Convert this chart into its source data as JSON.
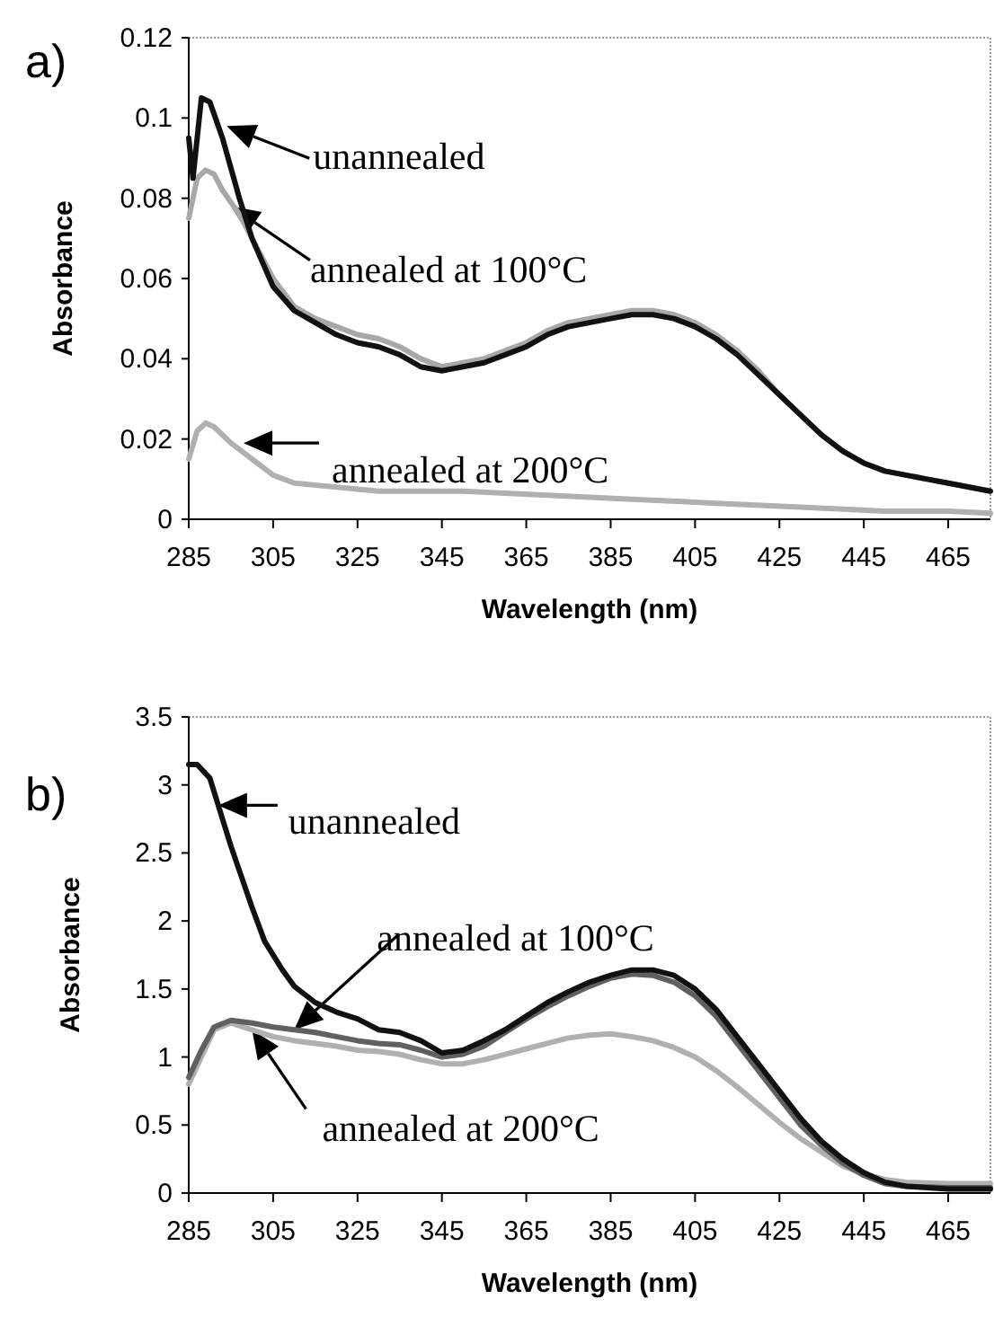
{
  "chart_data": [
    {
      "type": "line",
      "title": "a)",
      "xlabel": "Wavelength (nm)",
      "ylabel": "Absorbance",
      "xlim": [
        285,
        475
      ],
      "xticks": [
        285,
        305,
        325,
        345,
        365,
        385,
        405,
        425,
        445,
        465
      ],
      "ylim": [
        0,
        0.12
      ],
      "yticks": [
        0,
        0.02,
        0.04,
        0.06,
        0.08,
        0.1,
        0.12
      ],
      "grid": false,
      "marker": "none",
      "line_style": "solid",
      "series": [
        {
          "color": "#a8a8a8",
          "x": [
            285,
            287,
            289,
            291,
            293,
            297,
            300,
            305,
            310,
            315,
            320,
            325,
            330,
            335,
            340,
            345,
            350,
            355,
            360,
            365,
            370,
            375,
            380,
            385,
            390,
            395,
            400,
            405,
            410,
            415,
            420,
            425,
            430,
            435,
            440,
            445,
            450,
            455,
            460,
            465,
            470,
            475
          ],
          "values": [
            0.075,
            0.085,
            0.087,
            0.086,
            0.082,
            0.076,
            0.07,
            0.06,
            0.053,
            0.05,
            0.048,
            0.046,
            0.045,
            0.043,
            0.04,
            0.038,
            0.039,
            0.04,
            0.042,
            0.044,
            0.047,
            0.049,
            0.05,
            0.051,
            0.052,
            0.052,
            0.051,
            0.049,
            0.046,
            0.042,
            0.037,
            0.031,
            0.026,
            0.021,
            0.017,
            0.014,
            0.012,
            0.011,
            0.01,
            0.009,
            0.008,
            0.007
          ]
        },
        {
          "color": "#111111",
          "x": [
            285,
            286,
            288,
            290,
            293,
            297,
            300,
            305,
            310,
            315,
            320,
            325,
            330,
            335,
            340,
            345,
            350,
            355,
            360,
            365,
            370,
            375,
            380,
            385,
            390,
            395,
            400,
            405,
            410,
            415,
            420,
            425,
            430,
            435,
            440,
            445,
            450,
            455,
            460,
            465,
            470,
            475
          ],
          "values": [
            0.095,
            0.085,
            0.105,
            0.104,
            0.095,
            0.08,
            0.07,
            0.058,
            0.052,
            0.049,
            0.046,
            0.044,
            0.043,
            0.041,
            0.038,
            0.037,
            0.038,
            0.039,
            0.041,
            0.043,
            0.046,
            0.048,
            0.049,
            0.05,
            0.051,
            0.051,
            0.05,
            0.048,
            0.045,
            0.041,
            0.036,
            0.031,
            0.026,
            0.021,
            0.017,
            0.014,
            0.012,
            0.011,
            0.01,
            0.009,
            0.008,
            0.007
          ]
        },
        {
          "color": "#b0b0b0",
          "x": [
            285,
            287,
            289,
            291,
            295,
            300,
            305,
            310,
            320,
            330,
            350,
            370,
            390,
            410,
            430,
            450,
            465,
            475
          ],
          "values": [
            0.015,
            0.022,
            0.024,
            0.023,
            0.019,
            0.015,
            0.011,
            0.009,
            0.008,
            0.007,
            0.007,
            0.006,
            0.005,
            0.004,
            0.003,
            0.002,
            0.002,
            0.0015
          ]
        }
      ],
      "annotations": [
        {
          "text": "unannealed",
          "x": 294,
          "y": 0.098
        },
        {
          "text": "annealed at 100°C",
          "x": 295,
          "y": 0.078
        },
        {
          "text": "annealed at 200°C",
          "x": 298,
          "y": 0.019
        }
      ]
    },
    {
      "type": "line",
      "title": "b)",
      "xlabel": "Wavelength (nm)",
      "ylabel": "Absorbance",
      "xlim": [
        285,
        475
      ],
      "xticks": [
        285,
        305,
        325,
        345,
        365,
        385,
        405,
        425,
        445,
        465
      ],
      "ylim": [
        0,
        3.5
      ],
      "yticks": [
        0,
        0.5,
        1,
        1.5,
        2,
        2.5,
        3,
        3.5
      ],
      "grid": false,
      "marker": "none",
      "line_style": "solid",
      "series": [
        {
          "color": "#b0b0b0",
          "x": [
            285,
            288,
            291,
            295,
            300,
            305,
            310,
            315,
            320,
            325,
            330,
            335,
            340,
            345,
            350,
            355,
            360,
            365,
            370,
            375,
            380,
            385,
            390,
            395,
            400,
            405,
            410,
            415,
            420,
            425,
            430,
            435,
            440,
            445,
            450,
            455,
            465,
            475
          ],
          "values": [
            0.8,
            1.0,
            1.2,
            1.25,
            1.2,
            1.15,
            1.12,
            1.1,
            1.08,
            1.05,
            1.04,
            1.02,
            0.98,
            0.95,
            0.95,
            0.98,
            1.02,
            1.06,
            1.1,
            1.14,
            1.16,
            1.17,
            1.15,
            1.12,
            1.07,
            1.0,
            0.9,
            0.78,
            0.65,
            0.52,
            0.4,
            0.3,
            0.2,
            0.14,
            0.1,
            0.08,
            0.07,
            0.07
          ]
        },
        {
          "color": "#606060",
          "x": [
            285,
            288,
            291,
            295,
            300,
            305,
            310,
            315,
            320,
            325,
            330,
            335,
            340,
            345,
            350,
            355,
            360,
            365,
            370,
            375,
            380,
            385,
            390,
            395,
            400,
            405,
            410,
            415,
            420,
            425,
            430,
            435,
            440,
            445,
            450,
            455,
            465,
            475
          ],
          "values": [
            0.85,
            1.05,
            1.22,
            1.27,
            1.25,
            1.22,
            1.2,
            1.18,
            1.15,
            1.12,
            1.1,
            1.09,
            1.05,
            1.0,
            1.02,
            1.08,
            1.18,
            1.28,
            1.37,
            1.45,
            1.52,
            1.58,
            1.61,
            1.6,
            1.55,
            1.45,
            1.3,
            1.1,
            0.9,
            0.7,
            0.5,
            0.35,
            0.22,
            0.13,
            0.07,
            0.05,
            0.04,
            0.04
          ]
        },
        {
          "color": "#111111",
          "x": [
            285,
            287,
            290,
            292,
            295,
            300,
            303,
            307,
            310,
            315,
            320,
            325,
            330,
            335,
            340,
            345,
            350,
            355,
            360,
            365,
            370,
            375,
            380,
            385,
            390,
            395,
            400,
            405,
            410,
            415,
            420,
            425,
            430,
            435,
            440,
            445,
            450,
            455,
            460,
            465,
            475
          ],
          "values": [
            3.15,
            3.15,
            3.05,
            2.85,
            2.55,
            2.1,
            1.85,
            1.65,
            1.52,
            1.4,
            1.33,
            1.28,
            1.2,
            1.18,
            1.12,
            1.03,
            1.05,
            1.12,
            1.2,
            1.3,
            1.4,
            1.48,
            1.55,
            1.6,
            1.64,
            1.64,
            1.6,
            1.5,
            1.35,
            1.15,
            0.95,
            0.75,
            0.55,
            0.38,
            0.25,
            0.15,
            0.08,
            0.05,
            0.04,
            0.03,
            0.03
          ]
        }
      ],
      "annotations": [
        {
          "text": "unannealed",
          "x": 292,
          "y": 2.85
        },
        {
          "text": "annealed at 100°C",
          "x": 310,
          "y": 1.2
        },
        {
          "text": "annealed at 200°C",
          "x": 300,
          "y": 1.2
        }
      ]
    }
  ]
}
